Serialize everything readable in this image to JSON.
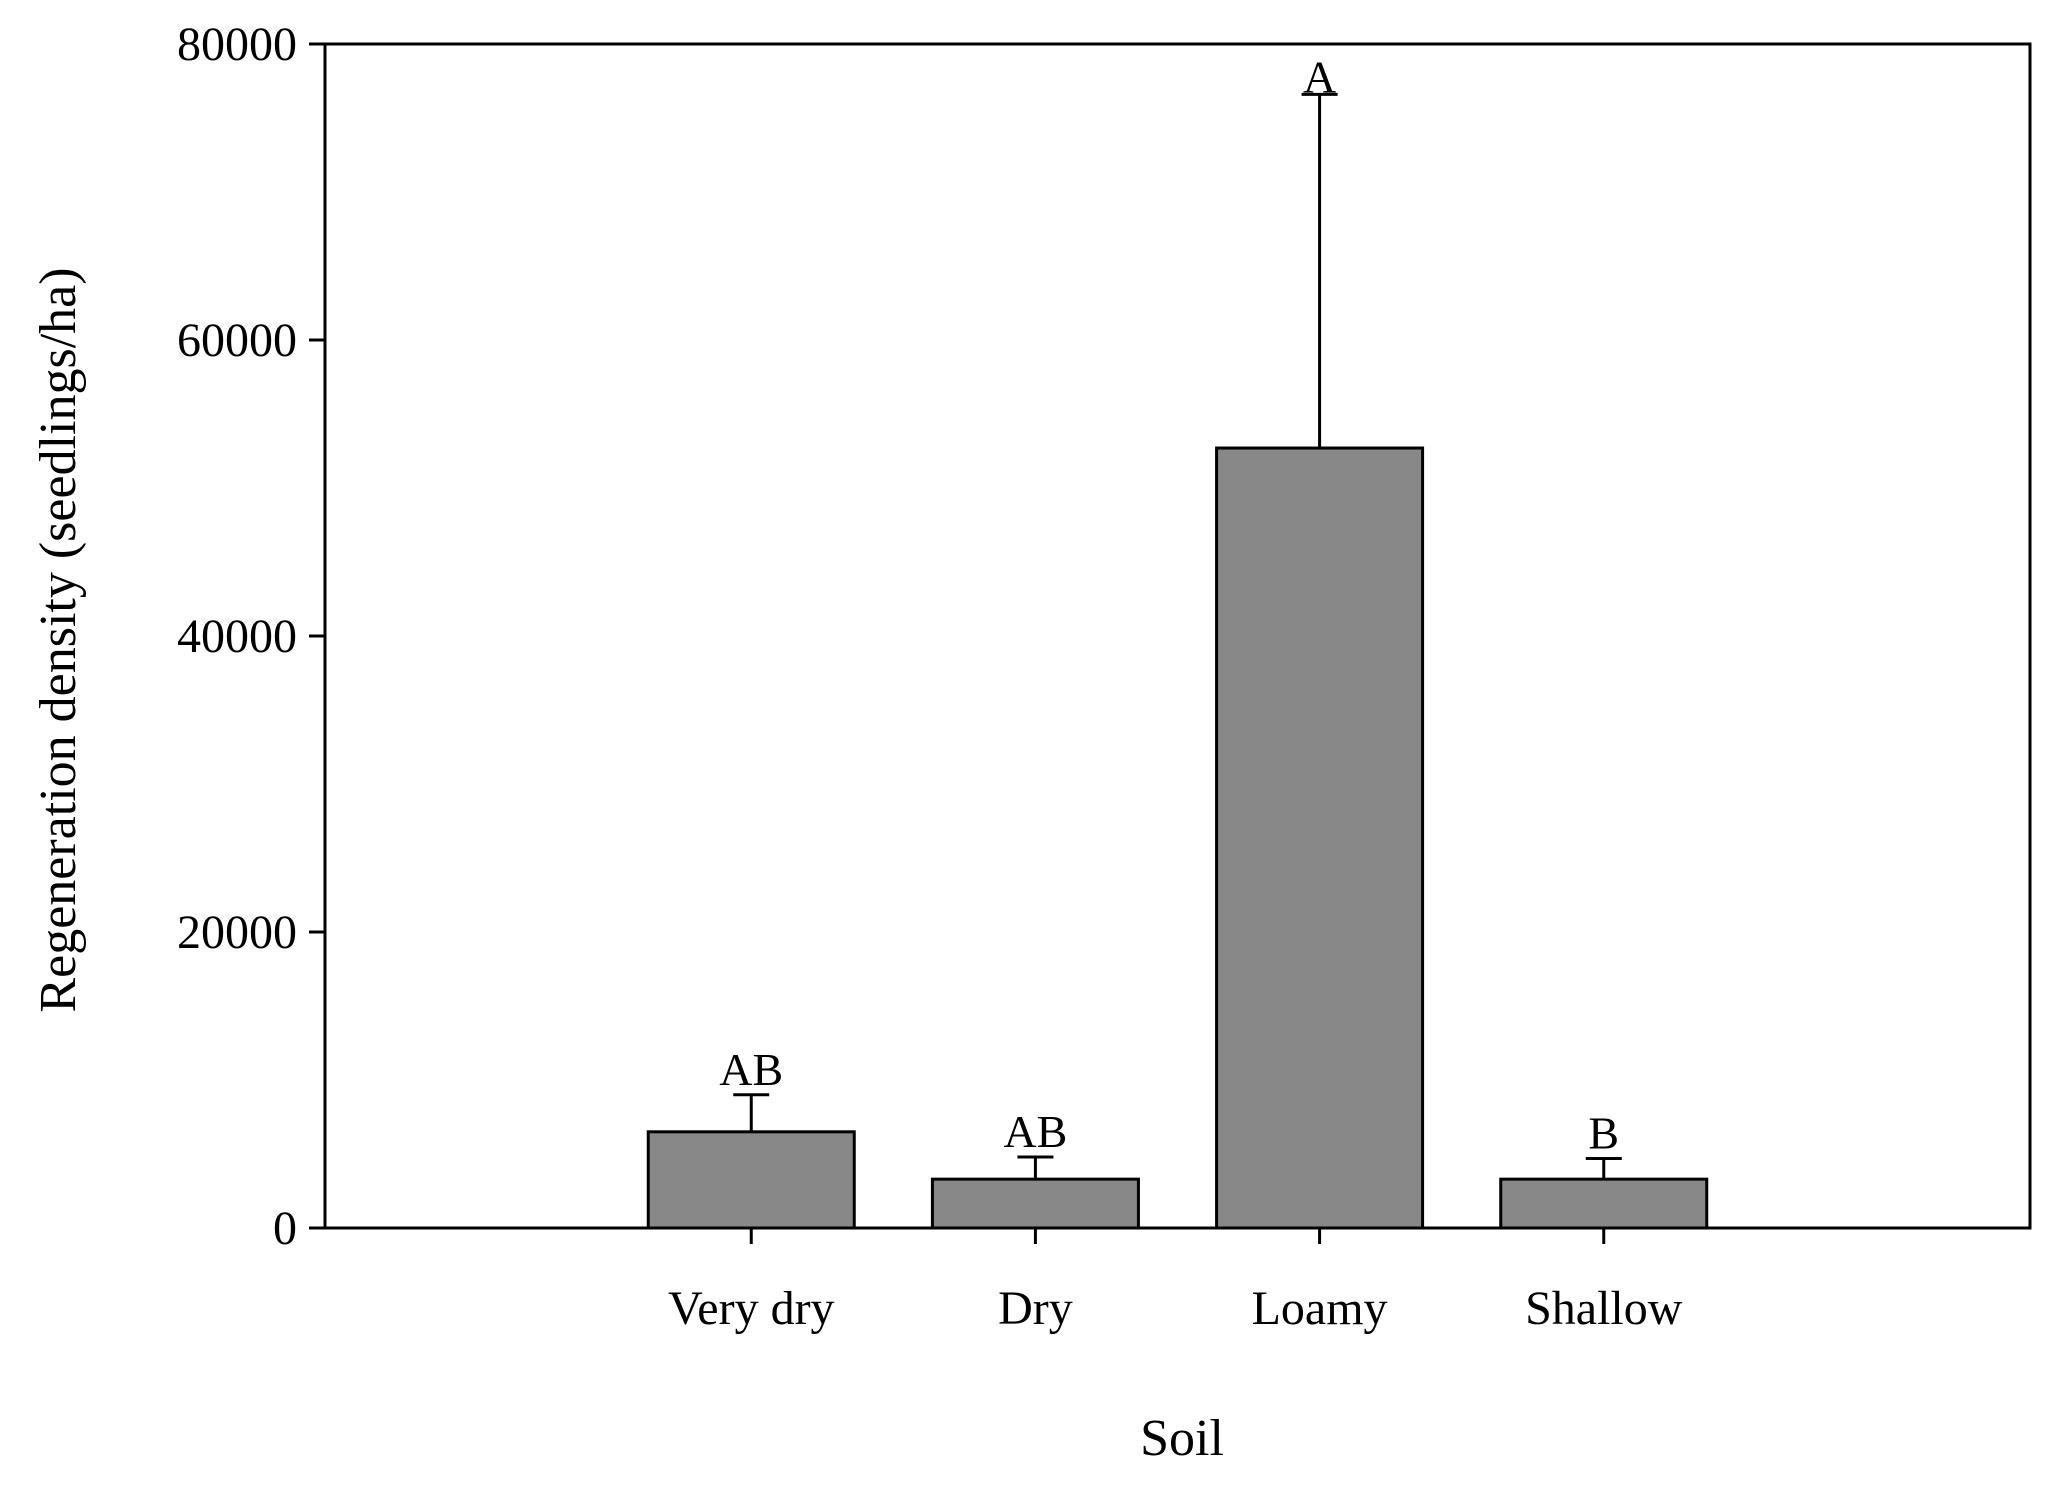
{
  "chart_data": {
    "type": "bar",
    "title": "",
    "xlabel": "Soil",
    "ylabel": "Regeneration density (seedlings/ha)",
    "categories": [
      "Very dry",
      "Dry",
      "Loamy",
      "Shallow"
    ],
    "values": [
      6500,
      3300,
      52700,
      3300
    ],
    "error_upper": [
      9000,
      4800,
      76600,
      4700
    ],
    "significance_labels": [
      "AB",
      "AB",
      "A",
      "B"
    ],
    "ylim": [
      0,
      80000
    ],
    "yticks": [
      0,
      20000,
      40000,
      60000,
      80000
    ],
    "ytick_labels": [
      "0",
      "20000",
      "40000",
      "60000",
      "80000"
    ],
    "bar_color": "#888888",
    "grid": false,
    "legend": "none"
  }
}
